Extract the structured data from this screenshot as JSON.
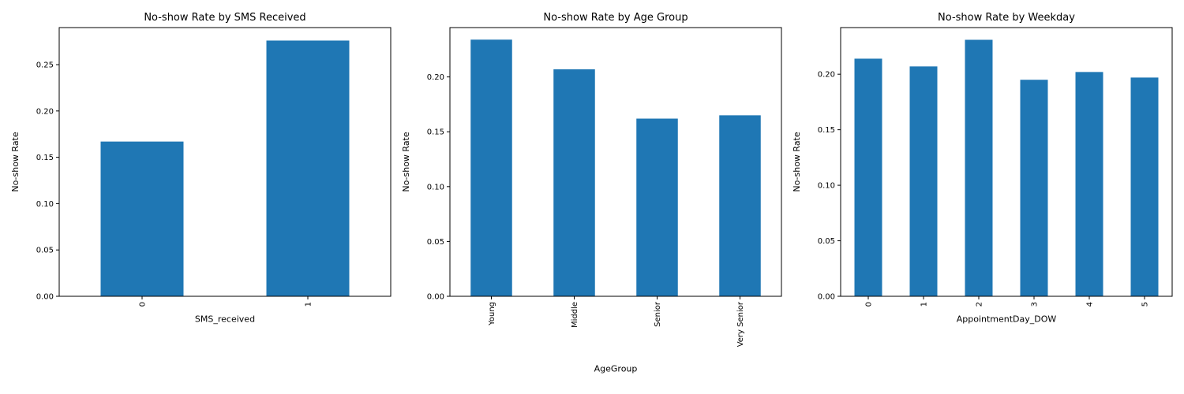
{
  "chart_data": [
    {
      "type": "bar",
      "title": "No-show Rate by SMS Received",
      "xlabel": "SMS_received",
      "ylabel": "No-show Rate",
      "categories": [
        "0",
        "1"
      ],
      "values": [
        0.167,
        0.276
      ],
      "ylim": [
        0,
        0.29
      ],
      "yticks": [
        0.0,
        0.05,
        0.1,
        0.15,
        0.2,
        0.25
      ],
      "ytick_labels": [
        "0.00",
        "0.05",
        "0.10",
        "0.15",
        "0.20",
        "0.25"
      ],
      "grid": false,
      "color": "#1f77b4"
    },
    {
      "type": "bar",
      "title": "No-show Rate by Age Group",
      "xlabel": "AgeGroup",
      "ylabel": "No-show Rate",
      "categories": [
        "Young",
        "Middle",
        "Senior",
        "Very Senior"
      ],
      "values": [
        0.234,
        0.207,
        0.162,
        0.165
      ],
      "ylim": [
        0,
        0.245
      ],
      "yticks": [
        0.0,
        0.05,
        0.1,
        0.15,
        0.2
      ],
      "ytick_labels": [
        "0.00",
        "0.05",
        "0.10",
        "0.15",
        "0.20"
      ],
      "grid": false,
      "color": "#1f77b4"
    },
    {
      "type": "bar",
      "title": "No-show Rate by Weekday",
      "xlabel": "AppointmentDay_DOW",
      "ylabel": "No-show Rate",
      "categories": [
        "0",
        "1",
        "2",
        "3",
        "4",
        "5"
      ],
      "values": [
        0.214,
        0.207,
        0.231,
        0.195,
        0.202,
        0.197
      ],
      "ylim": [
        0,
        0.242
      ],
      "yticks": [
        0.0,
        0.05,
        0.1,
        0.15,
        0.2
      ],
      "ytick_labels": [
        "0.00",
        "0.05",
        "0.10",
        "0.15",
        "0.20"
      ],
      "grid": false,
      "color": "#1f77b4"
    }
  ]
}
